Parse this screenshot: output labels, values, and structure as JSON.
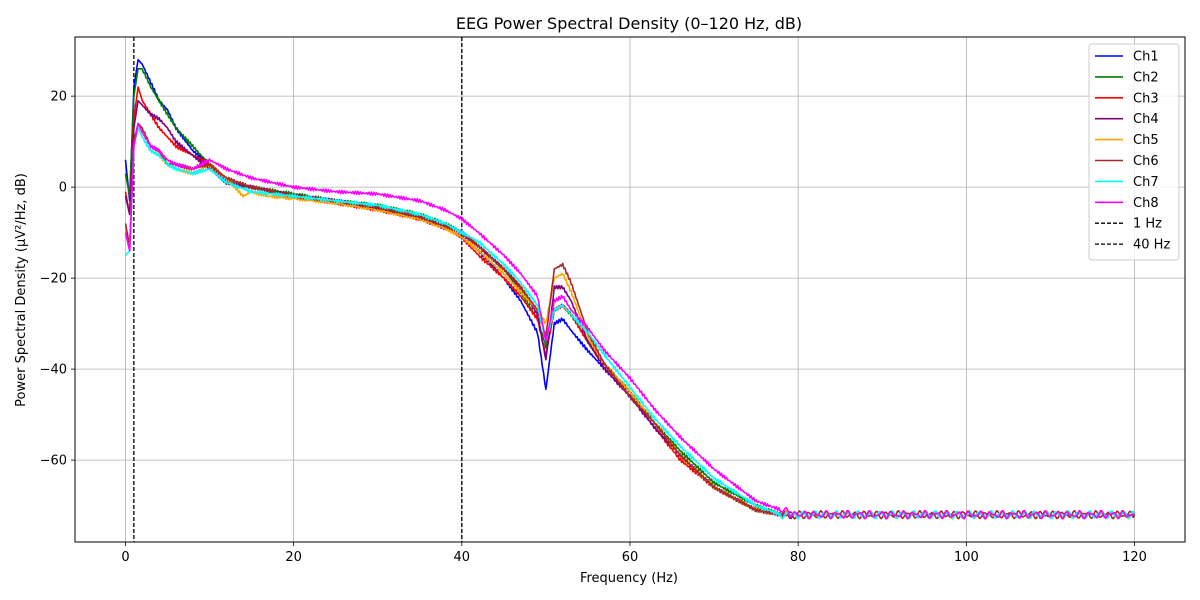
{
  "chart_data": {
    "type": "line",
    "title": "EEG Power Spectral Density (0–120 Hz, dB)",
    "xlabel": "Frequency (Hz)",
    "ylabel": "Power Spectral Density (µV²/Hz, dB)",
    "xlim": [
      -6,
      126
    ],
    "ylim": [
      -78,
      33
    ],
    "xticks": [
      0,
      20,
      40,
      60,
      80,
      100,
      120
    ],
    "yticks": [
      -60,
      -40,
      -20,
      0,
      20
    ],
    "grid": true,
    "legend_position": "top-right",
    "series": [
      {
        "name": "Ch1",
        "color": "#0000ff",
        "x": [
          0,
          0.5,
          1,
          1.5,
          2,
          3,
          4,
          5,
          6,
          8,
          10,
          12,
          15,
          20,
          25,
          30,
          35,
          38,
          40,
          42,
          45,
          47,
          49,
          50,
          51,
          52,
          53,
          55,
          57,
          60,
          63,
          66,
          70,
          75,
          78,
          80,
          90,
          100,
          110,
          120
        ],
        "y": [
          6,
          -3,
          22,
          28,
          27,
          23,
          19,
          17,
          13,
          8,
          5,
          1,
          0,
          -2,
          -3,
          -4.5,
          -7,
          -9,
          -11,
          -14,
          -20,
          -25,
          -32,
          -44.5,
          -30,
          -29,
          -31.5,
          -36,
          -40,
          -46,
          -53,
          -59,
          -66,
          -71,
          -72,
          -72,
          -72,
          -72,
          -72,
          -72
        ]
      },
      {
        "name": "Ch2",
        "color": "#008000",
        "x": [
          0,
          0.5,
          1,
          1.5,
          2,
          3,
          4,
          5,
          6,
          8,
          10,
          12,
          15,
          20,
          25,
          30,
          35,
          38,
          40,
          42,
          45,
          47,
          49,
          50,
          51,
          52,
          53,
          55,
          57,
          60,
          63,
          66,
          70,
          75,
          78,
          80,
          90,
          100,
          110,
          120
        ],
        "y": [
          3,
          -2,
          20,
          26,
          26,
          22,
          19,
          16,
          13,
          9,
          5,
          1,
          0,
          -1.5,
          -3,
          -4,
          -6,
          -8,
          -10,
          -13,
          -18,
          -23,
          -29,
          -35,
          -27,
          -26,
          -28,
          -34,
          -39,
          -45,
          -52,
          -58,
          -65,
          -70,
          -72,
          -72,
          -72,
          -72,
          -72,
          -72
        ]
      },
      {
        "name": "Ch3",
        "color": "#ff0000",
        "x": [
          0,
          0.5,
          1,
          1.5,
          2,
          3,
          4,
          5,
          6,
          8,
          10,
          12,
          15,
          20,
          25,
          30,
          35,
          38,
          40,
          42,
          45,
          47,
          49,
          50,
          51,
          52,
          53,
          55,
          57,
          60,
          63,
          66,
          70,
          75,
          78,
          80,
          90,
          100,
          110,
          120
        ],
        "y": [
          -1,
          -6,
          15,
          22,
          19,
          16,
          13,
          11,
          9,
          7,
          5,
          1,
          0,
          -2,
          -3.5,
          -5,
          -7,
          -9,
          -11,
          -15,
          -20,
          -24,
          -29,
          -37,
          -27,
          -26,
          -28,
          -34,
          -39,
          -46,
          -53,
          -60,
          -66,
          -71,
          -72,
          -72,
          -72,
          -72,
          -72,
          -72
        ]
      },
      {
        "name": "Ch4",
        "color": "#800080",
        "x": [
          0,
          0.5,
          1,
          1.5,
          2,
          3,
          4,
          5,
          6,
          8,
          10,
          12,
          15,
          20,
          25,
          30,
          35,
          38,
          40,
          42,
          45,
          47,
          49,
          50,
          51,
          52,
          53,
          55,
          57,
          60,
          63,
          66,
          70,
          75,
          78,
          80,
          90,
          100,
          110,
          120
        ],
        "y": [
          -2,
          -6,
          13,
          19,
          18,
          16,
          15,
          13,
          10,
          7,
          4,
          1,
          0,
          -2,
          -3,
          -4.5,
          -6.5,
          -8.5,
          -10,
          -13,
          -18,
          -22,
          -28,
          -38,
          -22,
          -22,
          -25,
          -34,
          -40,
          -46,
          -53,
          -59,
          -66,
          -71,
          -72,
          -72,
          -72,
          -72,
          -72,
          -72
        ]
      },
      {
        "name": "Ch5",
        "color": "#ffa500",
        "x": [
          0,
          0.5,
          1,
          1.5,
          2,
          3,
          4,
          5,
          6,
          8,
          10,
          12,
          14,
          15,
          17,
          20,
          25,
          30,
          35,
          38,
          40,
          42,
          45,
          47,
          49,
          50,
          51,
          52,
          53,
          55,
          57,
          60,
          63,
          66,
          70,
          75,
          78,
          80,
          90,
          100,
          110,
          120
        ],
        "y": [
          -9,
          -13,
          9,
          13,
          11,
          8,
          7,
          5,
          4,
          3,
          5,
          2,
          -2,
          -1,
          -2,
          -2.5,
          -3.5,
          -5,
          -7,
          -9,
          -11,
          -14,
          -19,
          -23,
          -27,
          -30,
          -20,
          -19,
          -23,
          -33,
          -39,
          -45,
          -52,
          -59,
          -66,
          -71,
          -72,
          -72,
          -72,
          -72,
          -72,
          -72
        ]
      },
      {
        "name": "Ch6",
        "color": "#a52a2a",
        "x": [
          0,
          0.5,
          1,
          1.5,
          2,
          3,
          4,
          5,
          6,
          8,
          10,
          12,
          15,
          20,
          25,
          30,
          35,
          38,
          40,
          42,
          45,
          47,
          49,
          50,
          51,
          52,
          53,
          55,
          57,
          60,
          63,
          66,
          70,
          75,
          78,
          80,
          90,
          100,
          110,
          120
        ],
        "y": [
          -8,
          -13,
          10,
          14,
          13,
          9,
          8,
          5,
          5,
          4,
          5,
          2,
          0,
          -2,
          -3,
          -4.5,
          -6.5,
          -8.5,
          -10,
          -13,
          -18,
          -22,
          -27,
          -33,
          -18,
          -17,
          -21,
          -32,
          -39,
          -46,
          -52,
          -59,
          -66,
          -71,
          -72,
          -72,
          -72,
          -72,
          -72,
          -72
        ]
      },
      {
        "name": "Ch7",
        "color": "#00ffff",
        "x": [
          0,
          0.5,
          1,
          1.5,
          2,
          3,
          4,
          5,
          6,
          8,
          10,
          12,
          15,
          20,
          25,
          30,
          35,
          38,
          40,
          42,
          45,
          47,
          49,
          50,
          51,
          52,
          53,
          55,
          57,
          60,
          63,
          66,
          70,
          75,
          78,
          80,
          90,
          100,
          110,
          120
        ],
        "y": [
          -15,
          -14,
          9,
          13,
          11,
          8,
          7,
          5,
          4,
          3,
          4,
          1,
          -1,
          -2,
          -3,
          -4,
          -6,
          -8,
          -10,
          -12,
          -17,
          -21,
          -26,
          -34,
          -27,
          -26,
          -28,
          -32,
          -37,
          -44,
          -51,
          -57,
          -64,
          -70,
          -72,
          -72,
          -72,
          -72,
          -72,
          -72
        ]
      },
      {
        "name": "Ch8",
        "color": "#ff00ff",
        "x": [
          0,
          0.5,
          1,
          1.5,
          2,
          3,
          4,
          5,
          6,
          8,
          10,
          12,
          15,
          20,
          25,
          30,
          35,
          38,
          40,
          42,
          45,
          47,
          49,
          50,
          51,
          52,
          53,
          55,
          57,
          60,
          63,
          66,
          70,
          75,
          78,
          80,
          90,
          100,
          110,
          120
        ],
        "y": [
          -10,
          -14,
          9,
          14,
          12,
          9,
          8,
          6,
          5,
          4,
          6,
          4,
          2,
          0,
          -1,
          -1.5,
          -3,
          -5,
          -7,
          -10,
          -15,
          -19,
          -24,
          -34,
          -25,
          -24,
          -27,
          -31,
          -36,
          -42,
          -49,
          -55,
          -62,
          -69,
          -71,
          -72,
          -72,
          -72,
          -72,
          -72
        ]
      }
    ],
    "vlines": [
      {
        "name": "1 Hz",
        "x": 1,
        "color": "#000000"
      },
      {
        "name": "40 Hz",
        "x": 40,
        "color": "#000000"
      }
    ]
  }
}
